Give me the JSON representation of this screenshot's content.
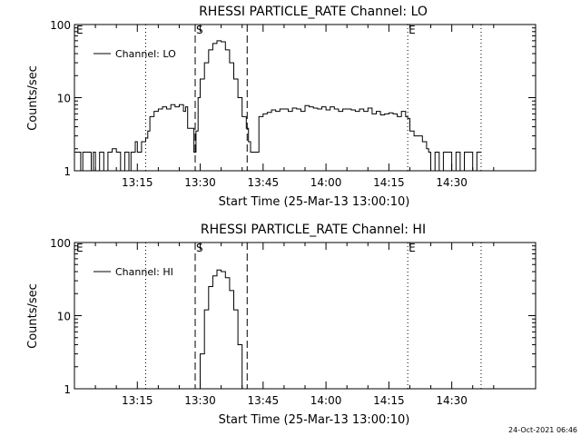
{
  "footer_timestamp": "24-Oct-2021 06:46",
  "chart_data": [
    {
      "type": "line",
      "title": "RHESSI PARTICLE_RATE Channel: LO",
      "xlabel": "Start Time (25-Mar-13 13:00:10)",
      "ylabel": "Counts/sec",
      "yscale": "log",
      "xlim_min_from_start": [
        0,
        110
      ],
      "ylim": [
        1,
        100
      ],
      "x_tick_labels": [
        "13:15",
        "13:30",
        "13:45",
        "14:00",
        "14:15",
        "14:30"
      ],
      "x_tick_minutes": [
        15,
        30,
        45,
        60,
        75,
        90
      ],
      "y_tick_labels": [
        "1",
        "10",
        "100"
      ],
      "y_tick_values": [
        1,
        10,
        100
      ],
      "legend": {
        "label": "Channel: LO",
        "position": "top-left"
      },
      "markers": [
        {
          "label": "E",
          "x": 0,
          "style": "dotted"
        },
        {
          "label": "",
          "x": 17,
          "style": "dotted"
        },
        {
          "label": "S",
          "x": 28.8,
          "style": "dashed"
        },
        {
          "label": "",
          "x": 41.2,
          "style": "dashed"
        },
        {
          "label": "E",
          "x": 79.5,
          "style": "dotted"
        },
        {
          "label": "",
          "x": 97,
          "style": "dotted"
        }
      ],
      "series": [
        {
          "name": "Channel: LO",
          "x": [
            0,
            1,
            1.5,
            2,
            3,
            4,
            4.5,
            5,
            6,
            7,
            8,
            9,
            10,
            11,
            12,
            13,
            13.5,
            14,
            14.5,
            15,
            16,
            17,
            17.5,
            18,
            19,
            20,
            21,
            22,
            23,
            24,
            25,
            26,
            26.5,
            27,
            28,
            28.5,
            29,
            29.5,
            30,
            31,
            32,
            33,
            34,
            35,
            36,
            37,
            38,
            39,
            40,
            41,
            41.5,
            42,
            43,
            44,
            45,
            46,
            47,
            48,
            49,
            50,
            51,
            52,
            53,
            54,
            55,
            56,
            57,
            58,
            59,
            60,
            61,
            62,
            63,
            64,
            65,
            66,
            67,
            68,
            69,
            70,
            71,
            72,
            73,
            74,
            75,
            76,
            77,
            78,
            79,
            79.5,
            80,
            81,
            82,
            83,
            84,
            84.5,
            85,
            86,
            87,
            88,
            89,
            90,
            91,
            92,
            93,
            94,
            95,
            96,
            97
          ],
          "y": [
            1.8,
            1.8,
            1.0,
            1.8,
            1.8,
            1.0,
            1.8,
            1.0,
            1.8,
            1.0,
            1.8,
            2.0,
            1.8,
            1.0,
            1.8,
            1.0,
            1.8,
            1.8,
            2.5,
            1.8,
            2.5,
            2.8,
            3.5,
            5.5,
            6.5,
            7.0,
            7.5,
            7.0,
            8.0,
            7.5,
            8.0,
            6.5,
            7.5,
            3.8,
            3.8,
            1.8,
            3.5,
            10,
            18,
            30,
            45,
            55,
            60,
            58,
            45,
            30,
            18,
            10,
            5.5,
            3.8,
            2.5,
            1.8,
            1.8,
            5.5,
            6.0,
            6.3,
            6.8,
            6.5,
            7.0,
            7.0,
            6.5,
            7.2,
            7.0,
            6.5,
            7.8,
            7.5,
            7.2,
            7.0,
            7.5,
            6.8,
            7.5,
            7.0,
            6.5,
            7.0,
            7.0,
            6.8,
            6.5,
            7.0,
            6.5,
            7.2,
            6.0,
            6.5,
            5.8,
            6.0,
            6.2,
            6.0,
            5.5,
            6.5,
            5.5,
            5.2,
            3.5,
            3.0,
            3.0,
            2.5,
            2.0,
            1.8,
            1.0,
            1.8,
            1.0,
            1.8,
            1.8,
            1.0,
            1.8,
            1.0,
            1.8,
            1.8,
            1.0,
            1.8,
            1.8
          ]
        }
      ]
    },
    {
      "type": "line",
      "title": "RHESSI PARTICLE_RATE Channel: HI",
      "xlabel": "Start Time (25-Mar-13 13:00:10)",
      "ylabel": "Counts/sec",
      "yscale": "log",
      "xlim_min_from_start": [
        0,
        110
      ],
      "ylim": [
        1,
        100
      ],
      "x_tick_labels": [
        "13:15",
        "13:30",
        "13:45",
        "14:00",
        "14:15",
        "14:30"
      ],
      "x_tick_minutes": [
        15,
        30,
        45,
        60,
        75,
        90
      ],
      "y_tick_labels": [
        "1",
        "10",
        "100"
      ],
      "y_tick_values": [
        1,
        10,
        100
      ],
      "legend": {
        "label": "Channel: HI",
        "position": "top-left"
      },
      "markers": [
        {
          "label": "E",
          "x": 0,
          "style": "dotted"
        },
        {
          "label": "",
          "x": 17,
          "style": "dotted"
        },
        {
          "label": "S",
          "x": 28.8,
          "style": "dashed"
        },
        {
          "label": "",
          "x": 41.2,
          "style": "dashed"
        },
        {
          "label": "E",
          "x": 79.5,
          "style": "dotted"
        },
        {
          "label": "",
          "x": 97,
          "style": "dotted"
        }
      ],
      "series": [
        {
          "name": "Channel: HI",
          "x": [
            29,
            30,
            31,
            32,
            33,
            34,
            35,
            36,
            37,
            38,
            39,
            40
          ],
          "y": [
            1.0,
            3.0,
            12,
            25,
            35,
            42,
            40,
            33,
            22,
            12,
            4.0,
            1.0
          ]
        }
      ]
    }
  ]
}
